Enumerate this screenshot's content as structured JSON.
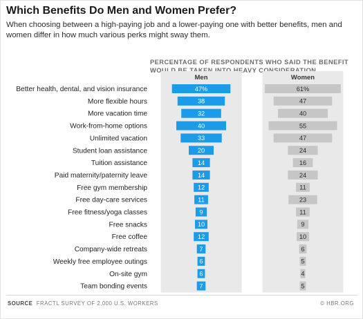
{
  "title": "Which Benefits Do Men and Women Prefer?",
  "subtitle": "When choosing between a high-paying job and a lower-paying one with better benefits, men and women differ in how much various perks might sway them.",
  "column_header_line1": "PERCENTAGE OF RESPONDENTS WHO SAID THE BENEFIT",
  "column_header_line2": "WOULD BE TAKEN INTO HEAVY CONSIDERATION",
  "source_label": "SOURCE",
  "source_text": "FRACTL SURVEY OF 2,000 U.S. WORKERS",
  "credit": "© HBR.ORG",
  "colors": {
    "men": "#1b9be8",
    "women": "#c6c6c6",
    "panel": "#e9e9e9"
  },
  "chart_data": {
    "type": "bar",
    "orientation": "horizontal",
    "layout": "centered-butterfly",
    "title": "Which Benefits Do Men and Women Prefer?",
    "value_suffix_first_row": "%",
    "categories": [
      "Better health, dental, and vision insurance",
      "More flexible hours",
      "More vacation time",
      "Work-from-home options",
      "Unlimited vacation",
      "Student loan assistance",
      "Tuition assistance",
      "Paid maternity/paternity leave",
      "Free gym membership",
      "Free day-care services",
      "Free fitness/yoga classes",
      "Free snacks",
      "Free coffee",
      "Company-wide retreats",
      "Weekly free employee outings",
      "On-site gym",
      "Team bonding events"
    ],
    "series": [
      {
        "name": "Men",
        "values": [
          47,
          38,
          32,
          40,
          33,
          20,
          14,
          14,
          12,
          11,
          9,
          10,
          12,
          7,
          6,
          6,
          7
        ]
      },
      {
        "name": "Women",
        "values": [
          61,
          47,
          40,
          55,
          47,
          24,
          16,
          24,
          11,
          23,
          11,
          9,
          10,
          6,
          5,
          4,
          5
        ]
      }
    ],
    "xlim": [
      0,
      61
    ]
  }
}
